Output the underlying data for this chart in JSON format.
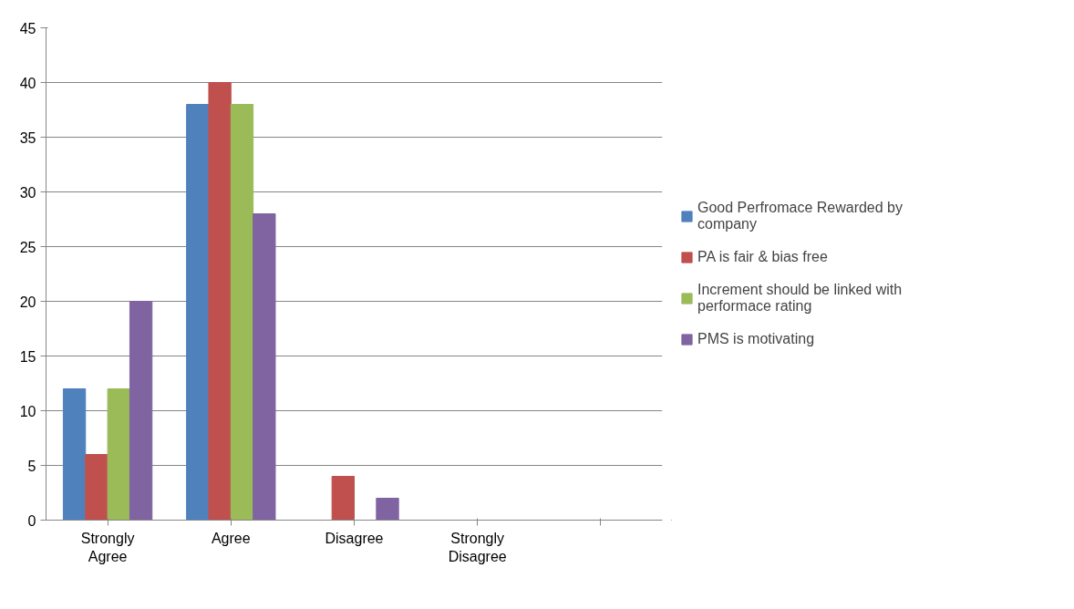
{
  "chart_data": {
    "type": "bar",
    "categories": [
      "Strongly Agree",
      "Agree",
      "Disagree",
      "Strongly Disagree",
      null
    ],
    "series": [
      {
        "name": "Good Perfromace Rewarded by company",
        "color": "#4f81bd",
        "values": [
          12,
          38,
          0,
          0,
          null
        ]
      },
      {
        "name": "PA is fair & bias free",
        "color": "#c0504d",
        "values": [
          6,
          40,
          4,
          0,
          null
        ]
      },
      {
        "name": "Increment should be linked with performace rating",
        "color": "#9bbb59",
        "values": [
          12,
          38,
          0,
          0,
          null
        ]
      },
      {
        "name": "PMS is motivating",
        "color": "#8064a2",
        "values": [
          20,
          28,
          2,
          0,
          null
        ]
      }
    ],
    "ylim": [
      0,
      45
    ],
    "yticks": [
      0,
      5,
      10,
      15,
      20,
      25,
      30,
      35,
      40,
      45
    ],
    "grid": "y",
    "legend": "right"
  }
}
